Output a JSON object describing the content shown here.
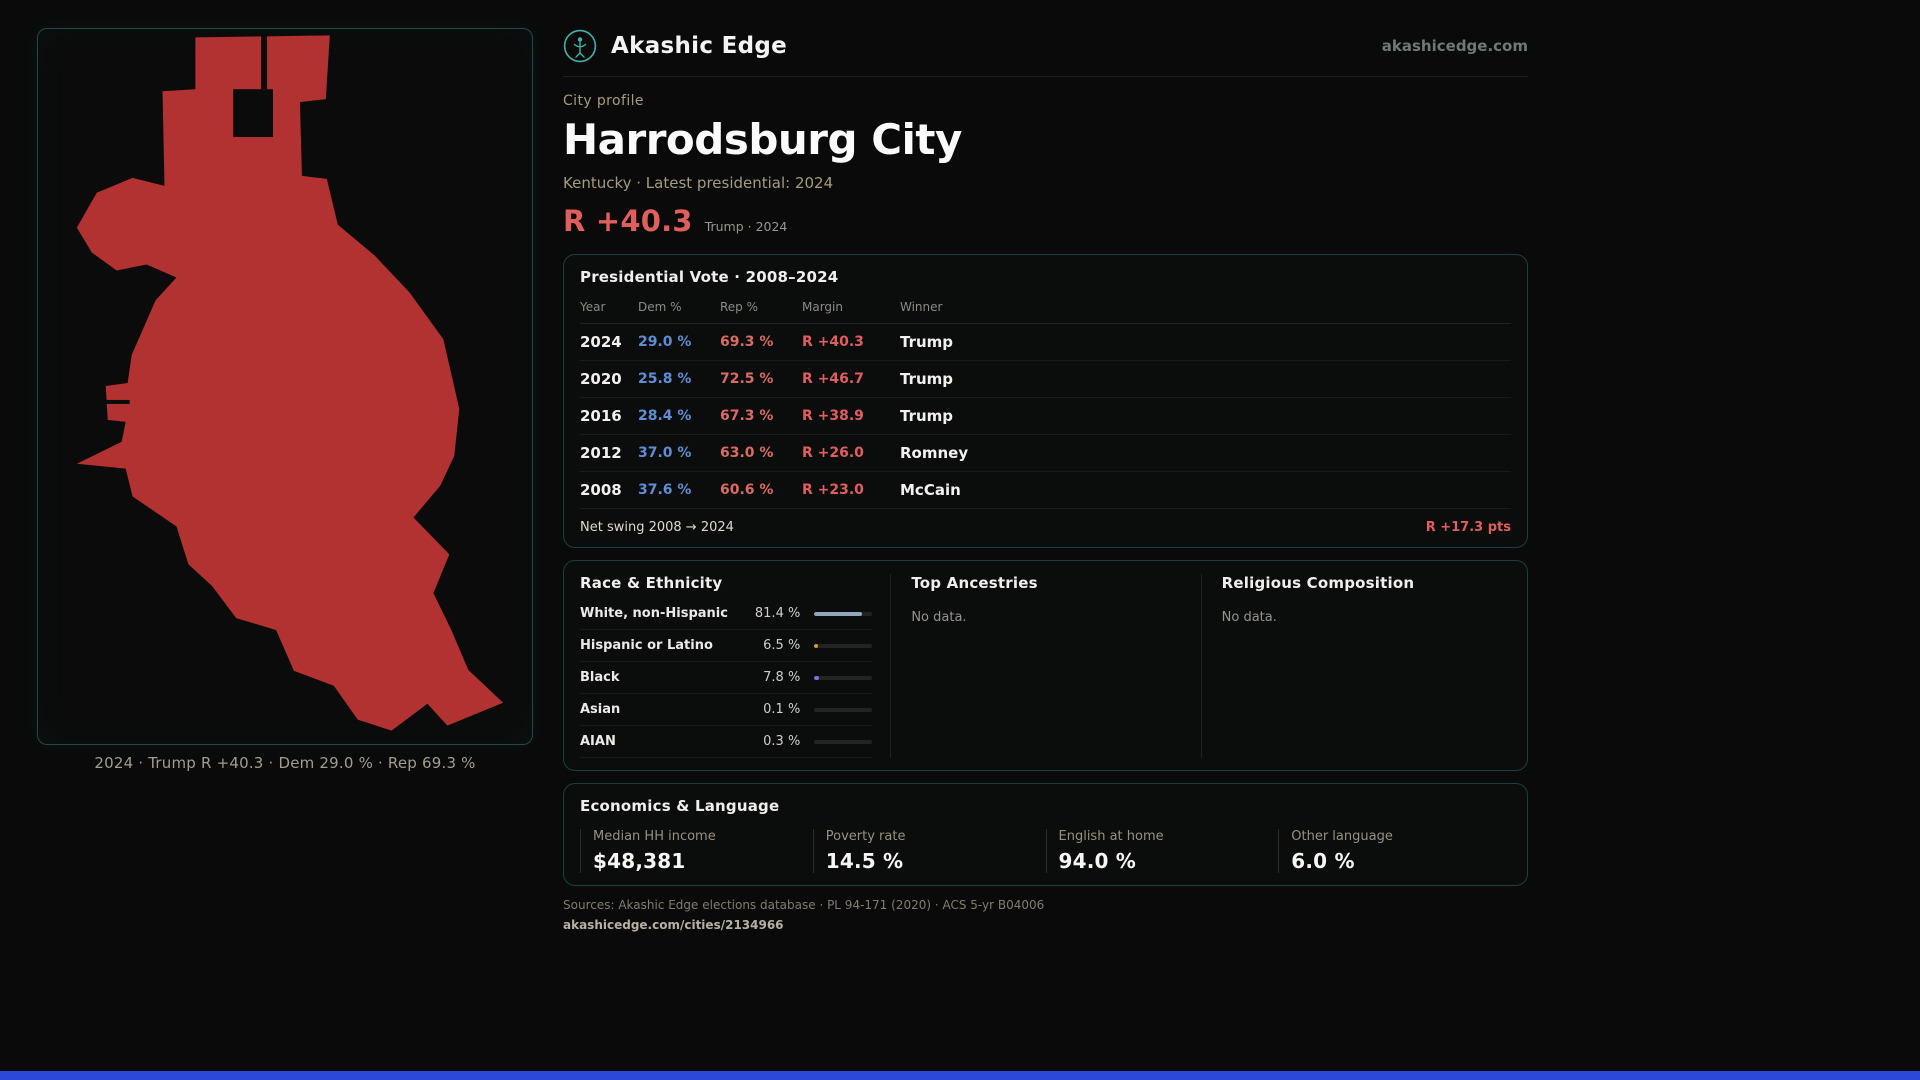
{
  "brand": {
    "name": "Akashic Edge",
    "domain": "akashicedge.com",
    "accent_teal": "#3fb3a6"
  },
  "map_panel": {
    "caption": "2024 · Trump R +40.3 · Dem 29.0 % · Rep 69.3 %",
    "shape_color": "#b23131"
  },
  "profile": {
    "kicker": "City profile",
    "title": "Harrodsburg City",
    "subtitle": "Kentucky · Latest presidential: 2024",
    "headline_margin": "R +40.3",
    "headline_context": "Trump · 2024",
    "margin_color": "#e05e5c"
  },
  "presidential_vote": {
    "title": "Presidential Vote · 2008–2024",
    "columns": [
      "Year",
      "Dem %",
      "Rep %",
      "Margin",
      "Winner"
    ],
    "dem_color": "#5d8ed6",
    "rep_color": "#dc6a60",
    "rows": [
      {
        "year": "2024",
        "dem": "29.0 %",
        "rep": "69.3 %",
        "margin": "R +40.3",
        "winner": "Trump"
      },
      {
        "year": "2020",
        "dem": "25.8 %",
        "rep": "72.5 %",
        "margin": "R +46.7",
        "winner": "Trump"
      },
      {
        "year": "2016",
        "dem": "28.4 %",
        "rep": "67.3 %",
        "margin": "R +38.9",
        "winner": "Trump"
      },
      {
        "year": "2012",
        "dem": "37.0 %",
        "rep": "63.0 %",
        "margin": "R +26.0",
        "winner": "Romney"
      },
      {
        "year": "2008",
        "dem": "37.6 %",
        "rep": "60.6 %",
        "margin": "R +23.0",
        "winner": "McCain"
      }
    ],
    "net_swing_label": "Net swing 2008 → 2024",
    "net_swing_value": "R +17.3 pts"
  },
  "race_ethnicity": {
    "title": "Race & Ethnicity",
    "rows": [
      {
        "label": "White, non-Hispanic",
        "value": "81.4 %",
        "pct": 81.4,
        "color": "#93a5be"
      },
      {
        "label": "Hispanic or Latino",
        "value": "6.5 %",
        "pct": 6.5,
        "color": "#d99a36"
      },
      {
        "label": "Black",
        "value": "7.8 %",
        "pct": 7.8,
        "color": "#7d6fe0"
      },
      {
        "label": "Asian",
        "value": "0.1 %",
        "pct": 0.1,
        "color": "#8a8a8a"
      },
      {
        "label": "AIAN",
        "value": "0.3 %",
        "pct": 0.3,
        "color": "#8a8a8a"
      }
    ]
  },
  "top_ancestries": {
    "title": "Top Ancestries",
    "empty": "No data."
  },
  "religion": {
    "title": "Religious Composition",
    "empty": "No data."
  },
  "economics": {
    "title": "Economics & Language",
    "stats": [
      {
        "label": "Median HH income",
        "value": "$48,381"
      },
      {
        "label": "Poverty rate",
        "value": "14.5 %"
      },
      {
        "label": "English at home",
        "value": "94.0 %"
      },
      {
        "label": "Other language",
        "value": "6.0 %"
      }
    ]
  },
  "footer": {
    "sources": "Sources: Akashic Edge elections database · PL 94-171 (2020) · ACS 5-yr B04006",
    "permalink": "akashicedge.com/cities/2134966"
  }
}
